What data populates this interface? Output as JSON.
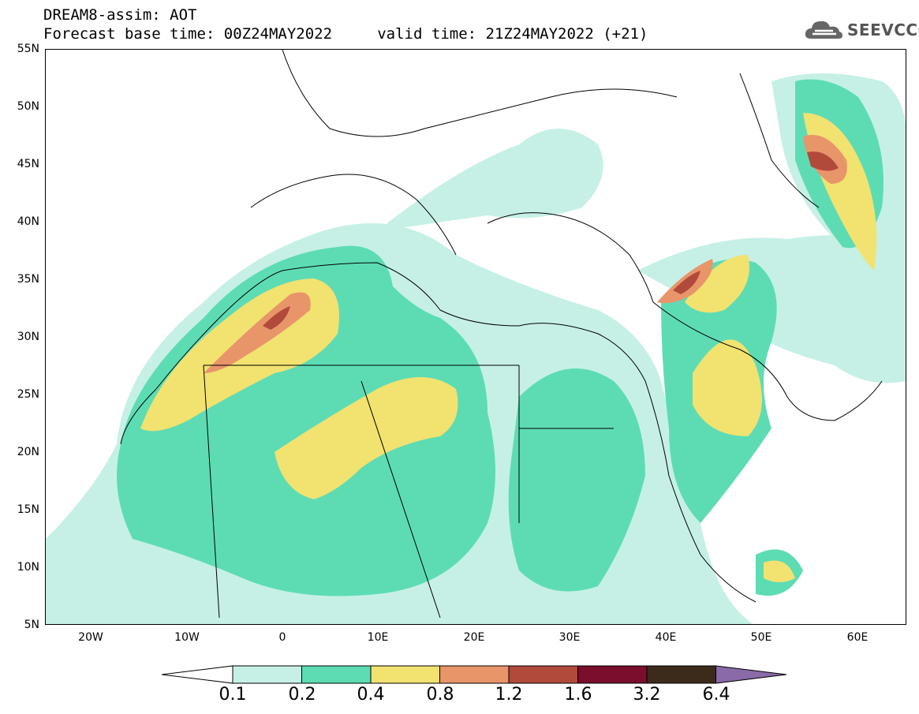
{
  "header": {
    "title_line1": "DREAM8-assim: AOT",
    "title_line2": "Forecast base time: 00Z24MAY2022     valid time: 21Z24MAY2022 (+21)",
    "logo_text": "SEEVCCC"
  },
  "map": {
    "variable": "AOT",
    "lat_labels": [
      "55N",
      "50N",
      "45N",
      "40N",
      "35N",
      "30N",
      "25N",
      "20N",
      "15N",
      "10N",
      "5N"
    ],
    "lon_labels": [
      "20W",
      "10W",
      "0",
      "10E",
      "20E",
      "30E",
      "40E",
      "50E",
      "60E"
    ]
  },
  "colorbar": {
    "levels": [
      "0.1",
      "0.2",
      "0.4",
      "0.8",
      "1.2",
      "1.6",
      "3.2",
      "6.4"
    ],
    "colors": [
      "#ffffff",
      "#c6f0e6",
      "#5ddcb4",
      "#f2e270",
      "#e8956a",
      "#b24a3c",
      "#7a0e2c",
      "#3c2a1a",
      "#8a6aa8"
    ]
  }
}
